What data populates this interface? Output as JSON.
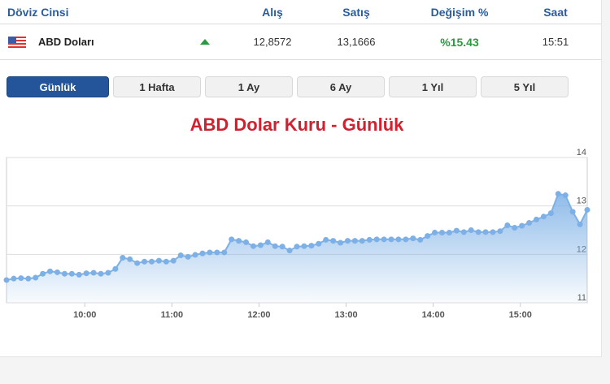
{
  "table": {
    "headers": [
      "Döviz Cinsi",
      "Alış",
      "Satış",
      "Değişim %",
      "Saat"
    ],
    "row": {
      "flag_icon": "us-flag-icon",
      "name": "ABD Doları",
      "trend_icon": "triangle-up-icon",
      "buy": "12,8572",
      "sell": "13,1666",
      "change": "%15.43",
      "time": "15:51"
    }
  },
  "tabs": [
    {
      "label": "Günlük",
      "active": true
    },
    {
      "label": "1 Hafta"
    },
    {
      "label": "1 Ay"
    },
    {
      "label": "6 Ay"
    },
    {
      "label": "1 Yıl"
    },
    {
      "label": "5 Yıl"
    }
  ],
  "colors": {
    "accent": "#24549a",
    "title": "#d1202f",
    "up": "#2a9a3f",
    "series": "#7cb0e6"
  },
  "chart_data": {
    "type": "area",
    "title": "ABD Dolar Kuru - Günlük",
    "ylim": [
      11,
      14
    ],
    "yticks": [
      "11",
      "12",
      "13",
      "14"
    ],
    "grid": true,
    "y_axis_side": "right",
    "xticks": [
      "10:00",
      "11:00",
      "12:00",
      "13:00",
      "14:00",
      "15:00"
    ],
    "xlim": [
      "09:10",
      "15:50"
    ],
    "x": [
      "09:10",
      "09:15",
      "09:20",
      "09:25",
      "09:30",
      "09:35",
      "09:40",
      "09:45",
      "09:50",
      "09:55",
      "10:00",
      "10:05",
      "10:10",
      "10:15",
      "10:20",
      "10:25",
      "10:30",
      "10:35",
      "10:40",
      "10:45",
      "10:50",
      "10:55",
      "11:00",
      "11:05",
      "11:10",
      "11:15",
      "11:20",
      "11:25",
      "11:30",
      "11:35",
      "11:40",
      "11:45",
      "11:50",
      "11:55",
      "12:00",
      "12:05",
      "12:10",
      "12:15",
      "12:20",
      "12:25",
      "12:30",
      "12:35",
      "12:40",
      "12:45",
      "12:50",
      "12:55",
      "13:00",
      "13:05",
      "13:10",
      "13:15",
      "13:20",
      "13:25",
      "13:30",
      "13:35",
      "13:40",
      "13:45",
      "13:50",
      "13:55",
      "14:00",
      "14:05",
      "14:10",
      "14:15",
      "14:20",
      "14:25",
      "14:30",
      "14:35",
      "14:40",
      "14:45",
      "14:50",
      "14:55",
      "15:00",
      "15:05",
      "15:10",
      "15:15",
      "15:20",
      "15:25",
      "15:30",
      "15:35",
      "15:40",
      "15:45",
      "15:50"
    ],
    "values": [
      11.47,
      11.5,
      11.51,
      11.5,
      11.52,
      11.6,
      11.65,
      11.63,
      11.6,
      11.6,
      11.58,
      11.61,
      11.62,
      11.6,
      11.62,
      11.7,
      11.93,
      11.9,
      11.82,
      11.85,
      11.85,
      11.87,
      11.85,
      11.87,
      11.98,
      11.95,
      11.99,
      12.02,
      12.04,
      12.04,
      12.04,
      12.31,
      12.28,
      12.25,
      12.17,
      12.19,
      12.25,
      12.17,
      12.16,
      12.08,
      12.16,
      12.17,
      12.18,
      12.22,
      12.3,
      12.28,
      12.24,
      12.28,
      12.28,
      12.28,
      12.3,
      12.31,
      12.31,
      12.31,
      12.31,
      12.31,
      12.33,
      12.3,
      12.38,
      12.45,
      12.45,
      12.45,
      12.49,
      12.46,
      12.5,
      12.46,
      12.46,
      12.46,
      12.48,
      12.6,
      12.55,
      12.59,
      12.65,
      12.72,
      12.78,
      12.85,
      13.25,
      13.22,
      12.88,
      12.62,
      12.92
    ]
  }
}
